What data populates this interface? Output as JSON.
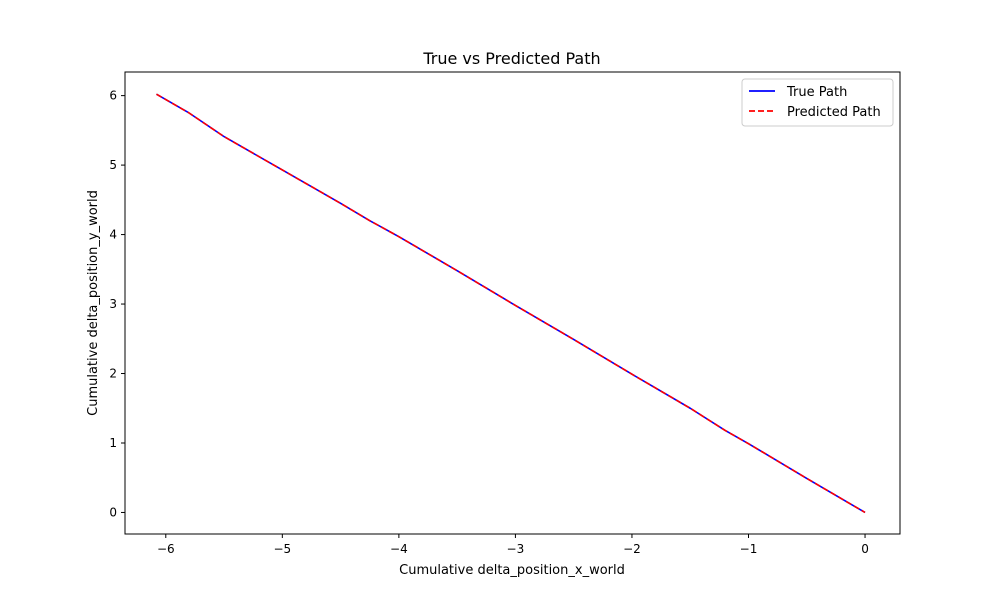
{
  "chart_data": {
    "type": "line",
    "title": "True vs Predicted Path",
    "xlabel": "Cumulative delta_position_x_world",
    "ylabel": "Cumulative delta_position_y_world",
    "xlim": [
      -6.35,
      0.3
    ],
    "ylim": [
      -0.31,
      6.34
    ],
    "xticks": [
      -6,
      -5,
      -4,
      -3,
      -2,
      -1,
      0
    ],
    "xtick_labels": [
      "−6",
      "−5",
      "−4",
      "−3",
      "−2",
      "−1",
      "0"
    ],
    "yticks": [
      0,
      1,
      2,
      3,
      4,
      5,
      6
    ],
    "ytick_labels": [
      "0",
      "1",
      "2",
      "3",
      "4",
      "5",
      "6"
    ],
    "grid": false,
    "legend_position": "top-right",
    "series": [
      {
        "name": "True Path",
        "color": "#0000ff",
        "style": "solid",
        "x": [
          -6.08,
          -5.8,
          -5.5,
          -5.0,
          -4.5,
          -4.25,
          -4.0,
          -3.5,
          -3.0,
          -2.5,
          -2.0,
          -1.5,
          -1.2,
          -1.0,
          -0.5,
          0.0
        ],
        "y": [
          6.02,
          5.75,
          5.41,
          4.93,
          4.45,
          4.2,
          3.97,
          3.48,
          2.98,
          2.49,
          1.99,
          1.5,
          1.18,
          0.99,
          0.49,
          0.0
        ]
      },
      {
        "name": "Predicted Path",
        "color": "#ff0000",
        "style": "dashed",
        "x": [
          -6.08,
          -5.8,
          -5.5,
          -5.0,
          -4.5,
          -4.25,
          -4.0,
          -3.5,
          -3.0,
          -2.5,
          -2.0,
          -1.5,
          -1.2,
          -1.0,
          -0.5,
          0.0
        ],
        "y": [
          6.02,
          5.75,
          5.41,
          4.93,
          4.45,
          4.2,
          3.97,
          3.48,
          2.98,
          2.49,
          1.99,
          1.5,
          1.18,
          0.99,
          0.49,
          0.0
        ]
      }
    ]
  }
}
